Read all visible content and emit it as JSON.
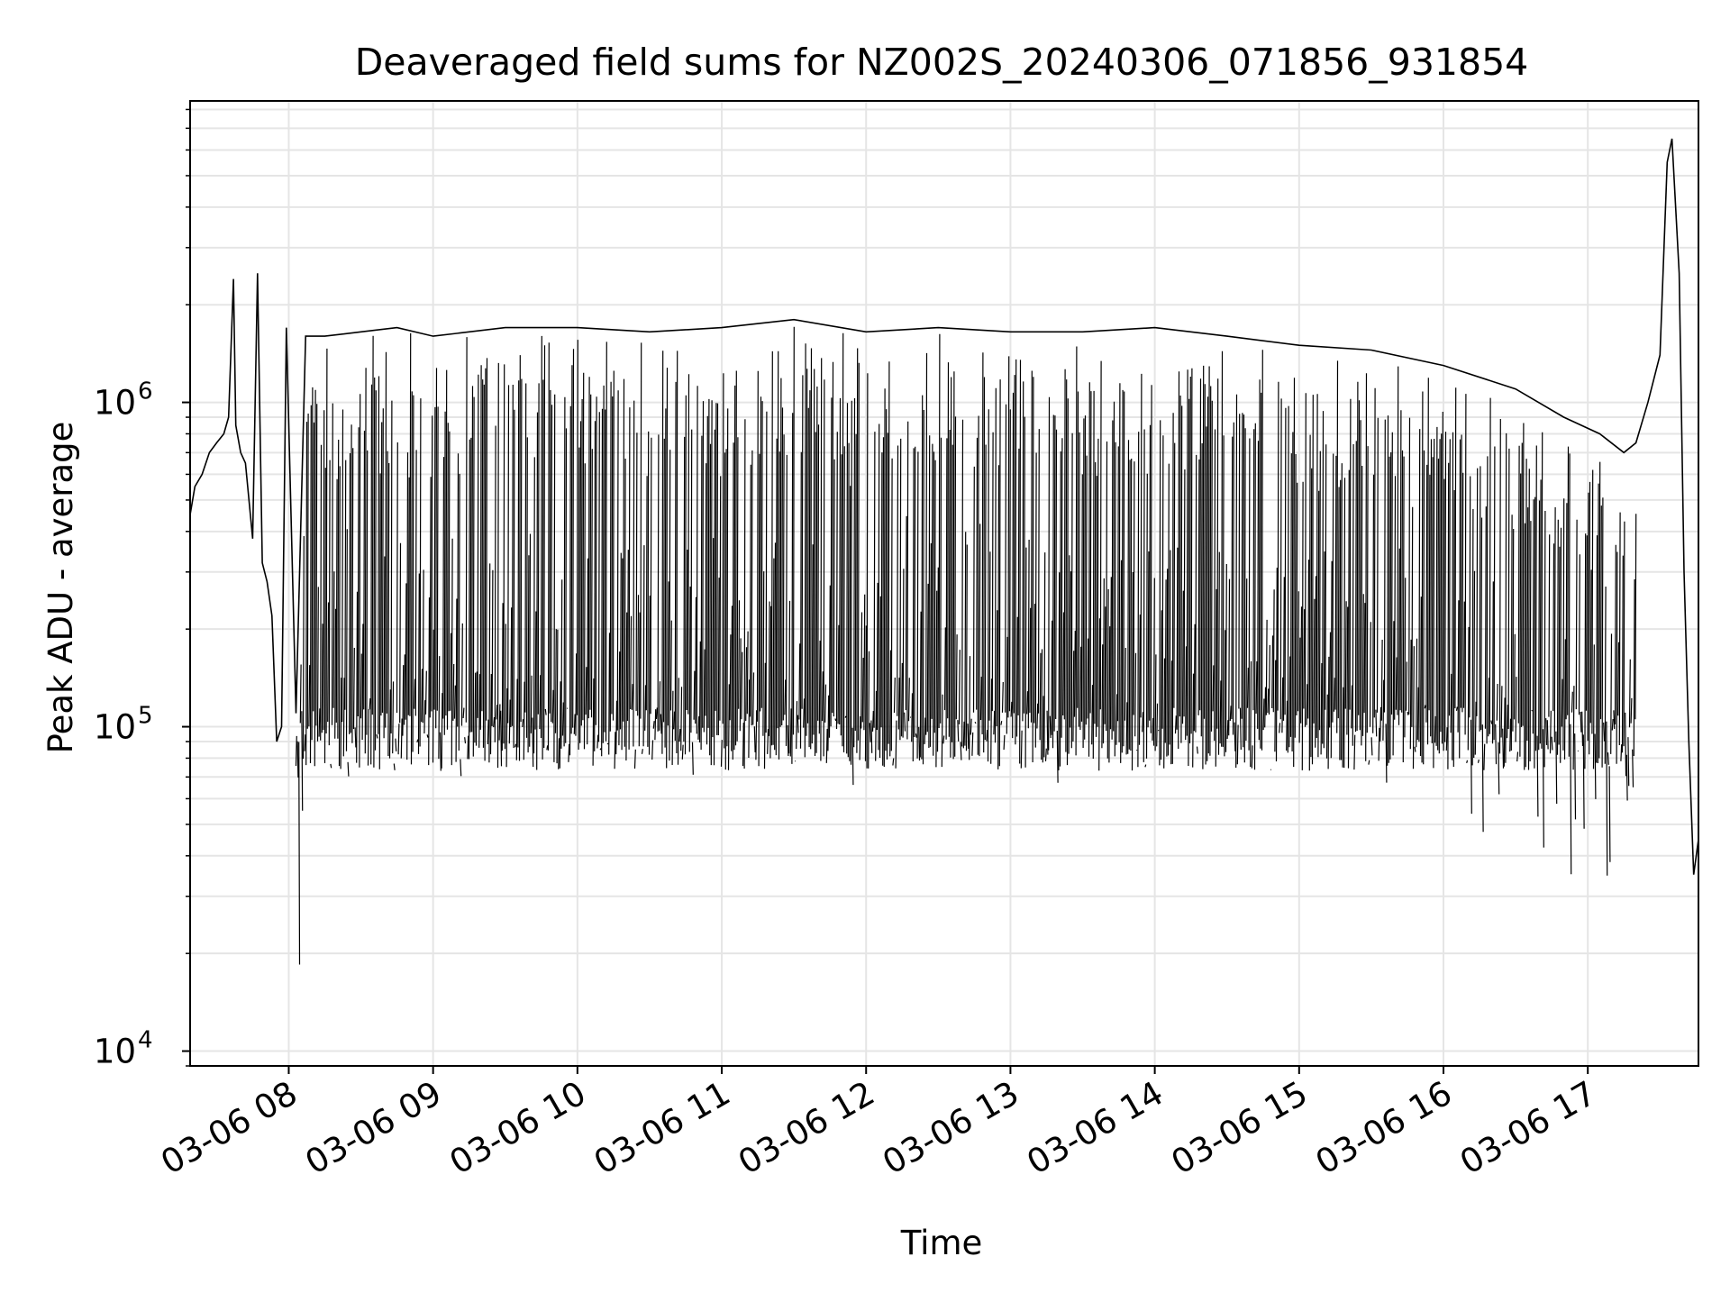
{
  "chart_data": {
    "type": "line",
    "title": "Deaveraged field sums for NZ002S_20240306_071856_931854",
    "xlabel": "Time",
    "ylabel": "Peak ADU - average",
    "y_scale": "log",
    "ylim": [
      9000,
      8500000
    ],
    "xlim": [
      "2024-03-06 07:19",
      "2024-03-06 17:46"
    ],
    "grid": true,
    "legend": "none",
    "line_color": "#000000",
    "grid_color": "#e5e5e5",
    "y_major_ticks": [
      {
        "value": 10000,
        "base": "10",
        "exp": "4"
      },
      {
        "value": 100000,
        "base": "10",
        "exp": "5"
      },
      {
        "value": 1000000,
        "base": "10",
        "exp": "6"
      }
    ],
    "x_ticks": [
      {
        "value": "2024-03-06 08:00",
        "label": "03-06 08"
      },
      {
        "value": "2024-03-06 09:00",
        "label": "03-06 09"
      },
      {
        "value": "2024-03-06 10:00",
        "label": "03-06 10"
      },
      {
        "value": "2024-03-06 11:00",
        "label": "03-06 11"
      },
      {
        "value": "2024-03-06 12:00",
        "label": "03-06 12"
      },
      {
        "value": "2024-03-06 13:00",
        "label": "03-06 13"
      },
      {
        "value": "2024-03-06 14:00",
        "label": "03-06 14"
      },
      {
        "value": "2024-03-06 15:00",
        "label": "03-06 15"
      },
      {
        "value": "2024-03-06 16:00",
        "label": "03-06 16"
      },
      {
        "value": "2024-03-06 17:00",
        "label": "03-06 17"
      }
    ],
    "series": [
      {
        "x": [
          "2024-03-06 07:19",
          "2024-03-06 07:21",
          "2024-03-06 07:24",
          "2024-03-06 07:27",
          "2024-03-06 07:30",
          "2024-03-06 07:33",
          "2024-03-06 07:35",
          "2024-03-06 07:37",
          "2024-03-06 07:38",
          "2024-03-06 07:40",
          "2024-03-06 07:42",
          "2024-03-06 07:45",
          "2024-03-06 07:47",
          "2024-03-06 07:49",
          "2024-03-06 07:51",
          "2024-03-06 07:53",
          "2024-03-06 07:55",
          "2024-03-06 07:57",
          "2024-03-06 07:59",
          "2024-03-06 08:03",
          "2024-03-06 08:07",
          "2024-03-06 08:15",
          "2024-03-06 08:30",
          "2024-03-06 08:45",
          "2024-03-06 09:00",
          "2024-03-06 09:30",
          "2024-03-06 10:00",
          "2024-03-06 10:30",
          "2024-03-06 11:00",
          "2024-03-06 11:30",
          "2024-03-06 12:00",
          "2024-03-06 12:30",
          "2024-03-06 13:00",
          "2024-03-06 13:30",
          "2024-03-06 14:00",
          "2024-03-06 14:30",
          "2024-03-06 15:00",
          "2024-03-06 15:30",
          "2024-03-06 16:00",
          "2024-03-06 16:30",
          "2024-03-06 16:50",
          "2024-03-06 17:05",
          "2024-03-06 17:15",
          "2024-03-06 17:20",
          "2024-03-06 17:25",
          "2024-03-06 17:30",
          "2024-03-06 17:33",
          "2024-03-06 17:35",
          "2024-03-06 17:38",
          "2024-03-06 17:40",
          "2024-03-06 17:42",
          "2024-03-06 17:44",
          "2024-03-06 17:46"
        ],
        "y": [
          450000,
          550000,
          600000,
          700000,
          750000,
          800000,
          900000,
          2400000,
          850000,
          700000,
          650000,
          380000,
          2500000,
          320000,
          280000,
          220000,
          90000,
          100000,
          1700000,
          110000,
          1600000,
          1600000,
          1650000,
          1700000,
          1600000,
          1700000,
          1700000,
          1650000,
          1700000,
          1800000,
          1650000,
          1700000,
          1650000,
          1650000,
          1700000,
          1600000,
          1500000,
          1450000,
          1300000,
          1100000,
          900000,
          800000,
          700000,
          750000,
          1000000,
          1400000,
          5500000,
          6500000,
          2500000,
          300000,
          90000,
          35000,
          45000
        ]
      }
    ]
  }
}
